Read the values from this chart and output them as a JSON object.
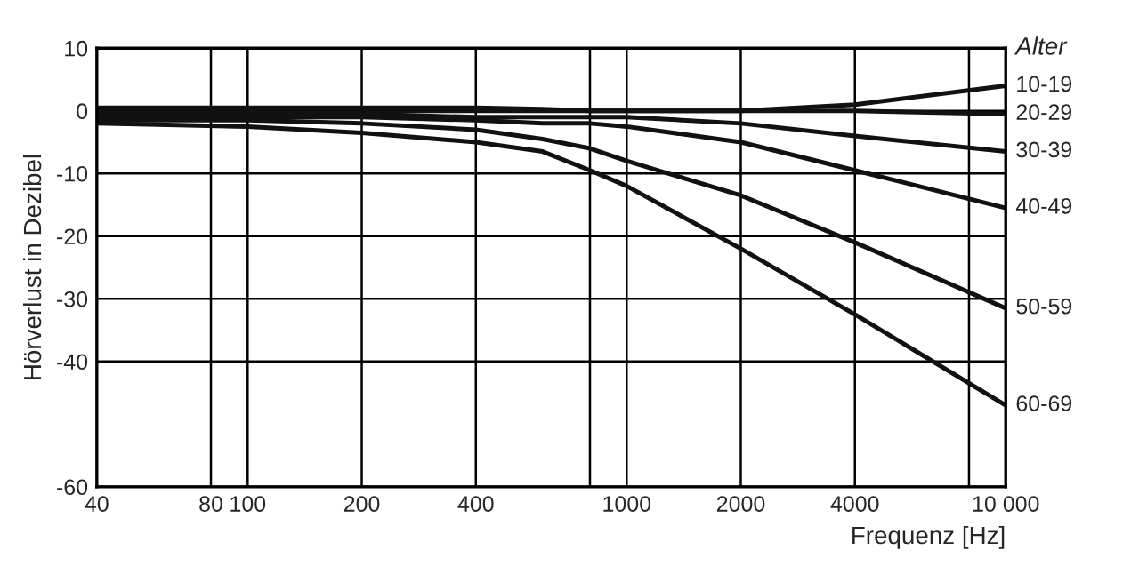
{
  "chart_data": {
    "type": "line",
    "xlabel": "Frequenz [Hz]",
    "ylabel": "Hörverlust in Dezibel",
    "legend_title": "Alter",
    "legend": false,
    "grid": true,
    "log": "x",
    "marker": "none",
    "line_style": "solid",
    "xlim": [
      40,
      10000
    ],
    "xticks": [
      40,
      80,
      100,
      200,
      400,
      {
        "value": 800,
        "label": null
      },
      1000,
      2000,
      4000,
      {
        "value": 8000,
        "label": null
      },
      {
        "value": 10000,
        "label": "10 000"
      }
    ],
    "ylim": [
      -60,
      10
    ],
    "yticks": [
      -60,
      -40,
      -30,
      -20,
      -10,
      0,
      10
    ],
    "x": [
      40,
      100,
      200,
      400,
      600,
      800,
      1000,
      2000,
      4000,
      10000
    ],
    "series": [
      {
        "name": "10-19",
        "color": "#111111",
        "values": [
          0.5,
          0.5,
          0.5,
          0.5,
          0.3,
          0,
          0,
          0,
          1,
          4
        ]
      },
      {
        "name": "20-29",
        "color": "#111111",
        "values": [
          0,
          0,
          0,
          0,
          0,
          0,
          0,
          0,
          0,
          -0.5
        ]
      },
      {
        "name": "30-39",
        "color": "#111111",
        "values": [
          -0.5,
          -0.5,
          -0.5,
          -1,
          -1,
          -1,
          -1,
          -2,
          -4,
          -6.5
        ]
      },
      {
        "name": "40-49",
        "color": "#111111",
        "values": [
          -1,
          -1,
          -1,
          -1.5,
          -2,
          -2,
          -2.5,
          -5,
          -9.5,
          -15.5
        ]
      },
      {
        "name": "50-59",
        "color": "#111111",
        "values": [
          -1.5,
          -1.5,
          -2,
          -3,
          -4.5,
          -6,
          -8,
          -13.5,
          -21,
          -31.5
        ]
      },
      {
        "name": "60-69",
        "color": "#111111",
        "values": [
          -2,
          -2.5,
          -3.5,
          -5,
          -6.5,
          -9.5,
          -12,
          -22,
          -32.5,
          -47
        ]
      }
    ]
  }
}
